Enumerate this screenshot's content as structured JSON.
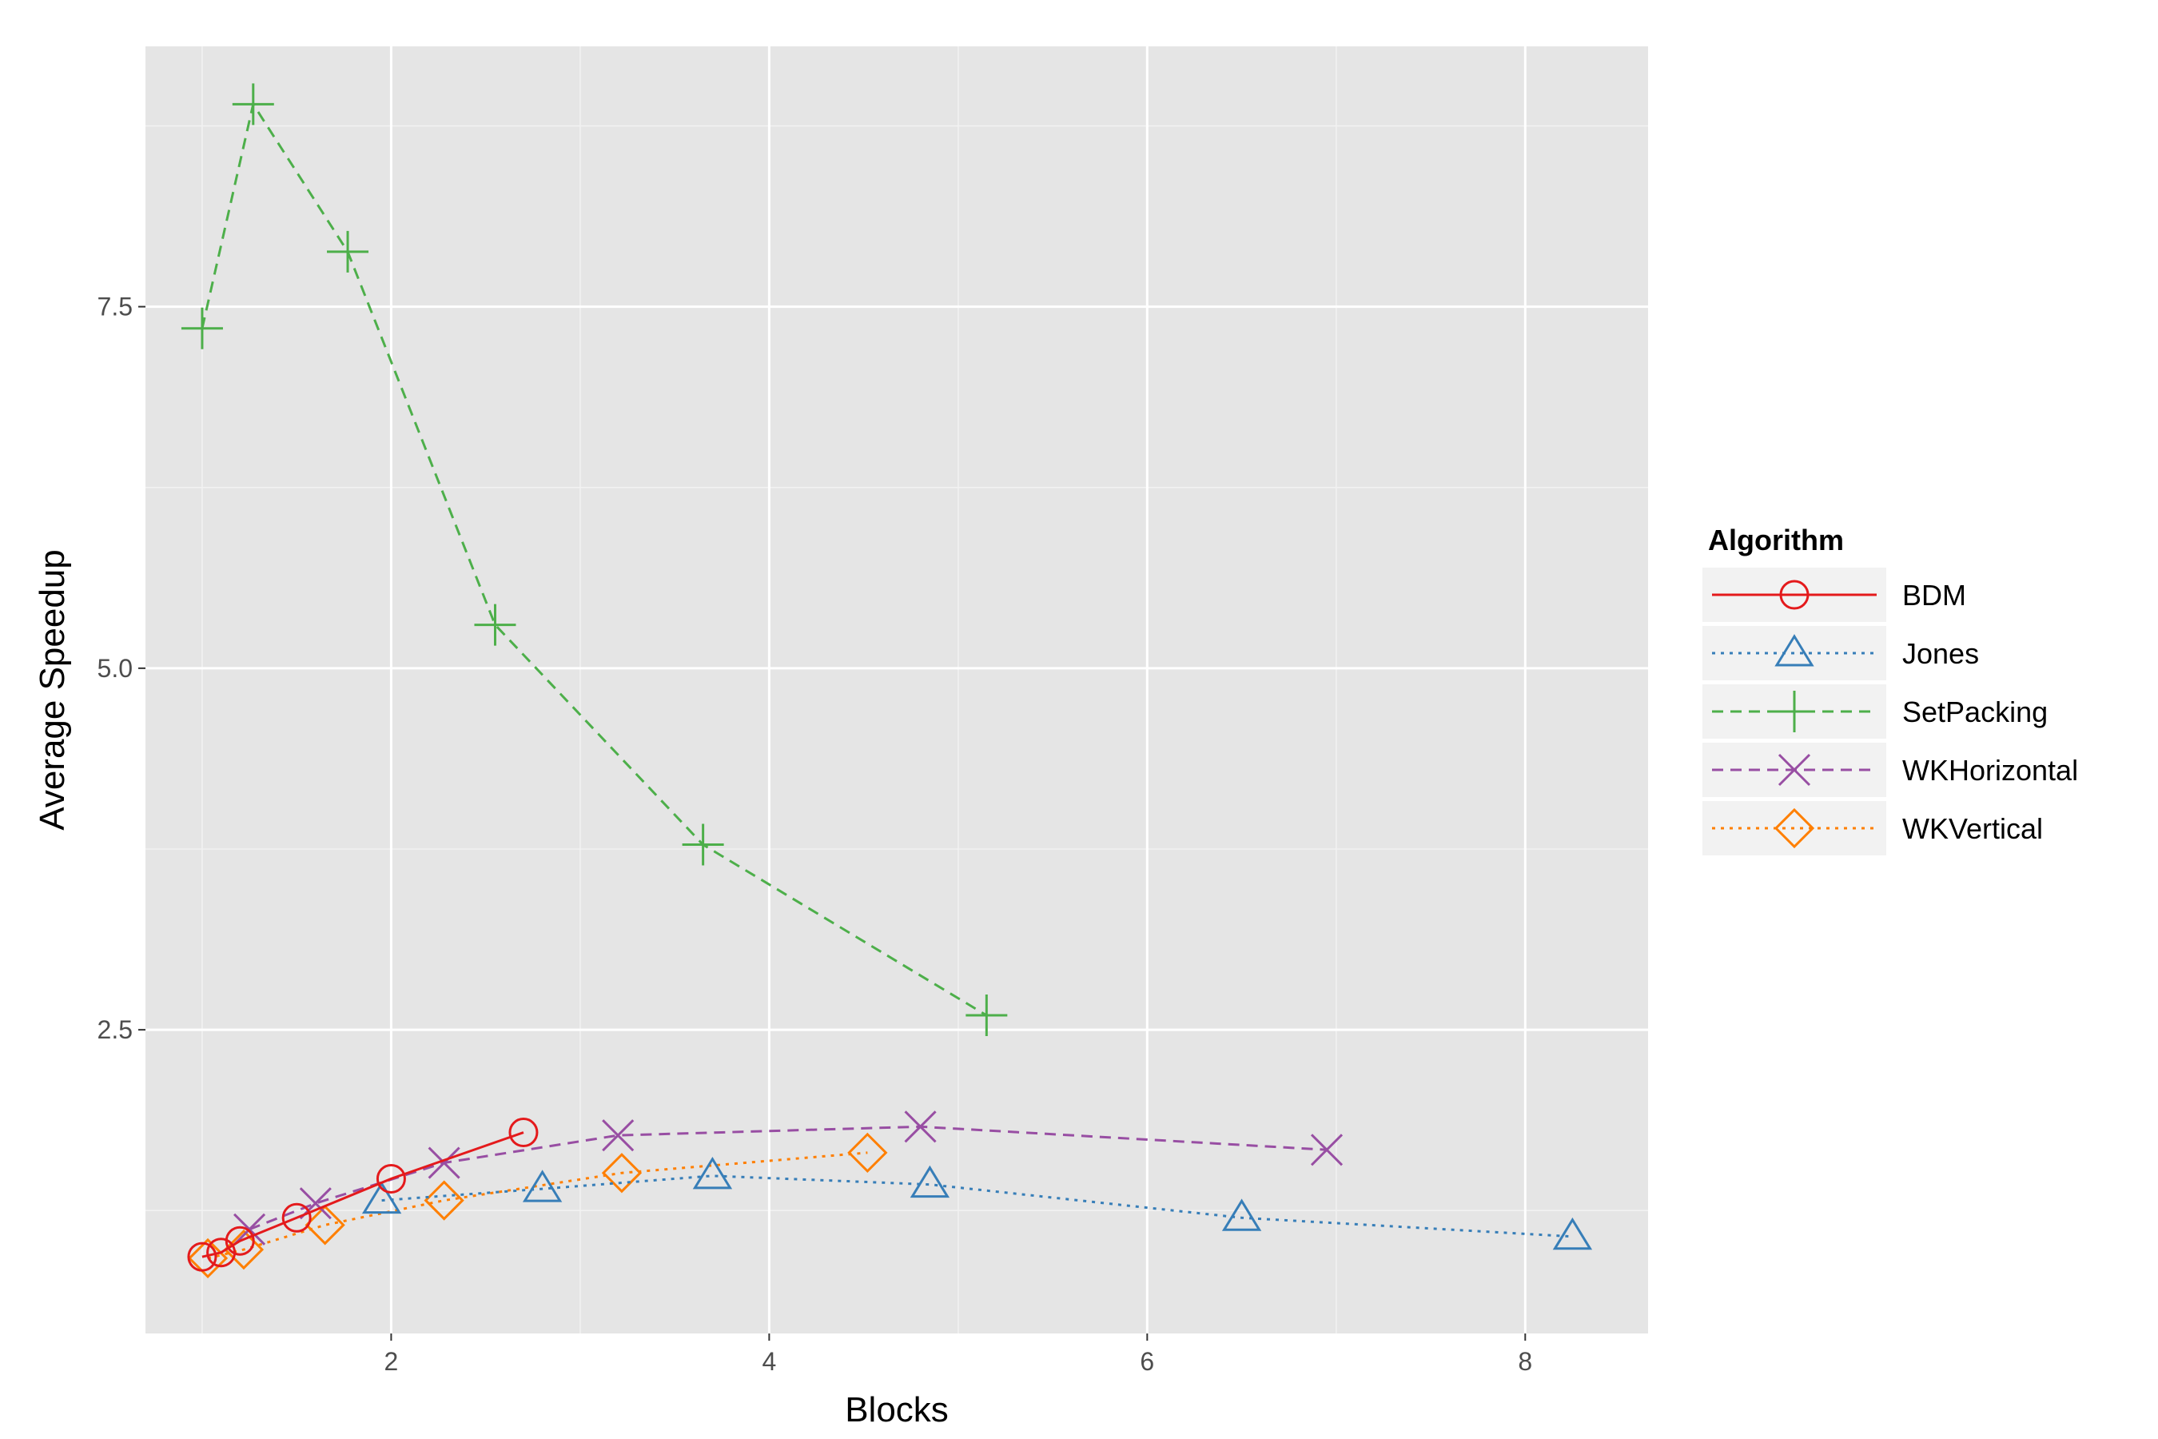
{
  "chart_data": {
    "type": "line",
    "title": "",
    "xlabel": "Blocks",
    "ylabel": "Average Speedup",
    "xlim": [
      0.7,
      8.65
    ],
    "ylim": [
      0.4,
      9.3
    ],
    "x_ticks": [
      2,
      4,
      6,
      8
    ],
    "x_tick_labels": [
      "2",
      "4",
      "6",
      "8"
    ],
    "y_ticks": [
      2.5,
      5.0,
      7.5
    ],
    "y_tick_labels": [
      "2.5",
      "5.0",
      "7.5"
    ],
    "grid": true,
    "legend_title": "Algorithm",
    "legend_position": "right",
    "series": [
      {
        "name": "BDM",
        "color": "#e41a1c",
        "line_style": "solid",
        "marker": "circle",
        "x": [
          1.0,
          1.1,
          1.2,
          1.5,
          2.0,
          2.7
        ],
        "y": [
          0.93,
          0.96,
          1.04,
          1.2,
          1.47,
          1.79
        ]
      },
      {
        "name": "Jones",
        "color": "#377eb8",
        "line_style": "dotted",
        "marker": "triangle",
        "x": [
          1.95,
          2.8,
          3.7,
          4.85,
          6.5,
          8.25
        ],
        "y": [
          1.32,
          1.4,
          1.49,
          1.43,
          1.2,
          1.07
        ]
      },
      {
        "name": "SetPacking",
        "color": "#4daf4a",
        "line_style": "dashed",
        "marker": "plus",
        "x": [
          1.0,
          1.27,
          1.77,
          2.55,
          3.65,
          5.15
        ],
        "y": [
          7.35,
          8.9,
          7.88,
          5.3,
          3.78,
          2.6
        ]
      },
      {
        "name": "WKHorizontal",
        "color": "#984ea3",
        "line_style": "dashed",
        "marker": "x",
        "x": [
          1.25,
          1.6,
          2.28,
          3.2,
          4.8,
          6.95
        ],
        "y": [
          1.12,
          1.3,
          1.58,
          1.77,
          1.83,
          1.67
        ]
      },
      {
        "name": "WKVertical",
        "color": "#ff7f00",
        "line_style": "dotted",
        "marker": "diamond",
        "x": [
          1.03,
          1.22,
          1.65,
          2.28,
          3.22,
          4.52
        ],
        "y": [
          0.92,
          0.98,
          1.15,
          1.32,
          1.51,
          1.65
        ]
      }
    ]
  }
}
